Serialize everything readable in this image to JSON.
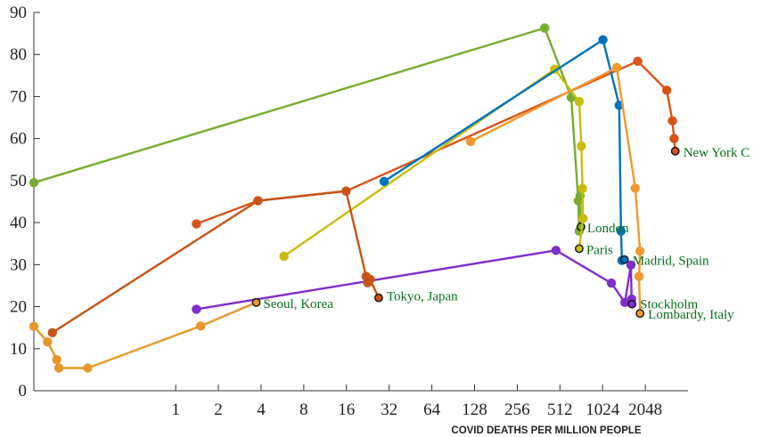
{
  "chart_data": {
    "type": "line",
    "title": "",
    "xlabel": "COVID DEATHS PER MILLION PEOPLE",
    "ylabel": "",
    "x_scale": "log2",
    "xlim": [
      0.1,
      4096
    ],
    "ylim": [
      0,
      90
    ],
    "grid": false,
    "x_ticks": [
      1,
      2,
      4,
      8,
      16,
      32,
      64,
      128,
      256,
      512,
      1024,
      2048
    ],
    "x_tick_labels": [
      "1",
      "2",
      "4",
      "8",
      "16",
      "32",
      "64",
      "128",
      "256",
      "512",
      "1024",
      "2048"
    ],
    "y_ticks": [
      0,
      10,
      20,
      30,
      40,
      50,
      60,
      70,
      80,
      90
    ],
    "y_tick_labels": [
      "0",
      "10",
      "20",
      "30",
      "40",
      "50",
      "60",
      "70",
      "80",
      "90"
    ],
    "series": [
      {
        "name": "New York C",
        "color": "#d95319",
        "points": [
          [
            1.4,
            39.7
          ],
          [
            3.8,
            45.2
          ],
          [
            15.9,
            47.5
          ],
          [
            1810,
            78.4
          ],
          [
            2900,
            71.5
          ],
          [
            3180,
            64.2
          ],
          [
            3270,
            60.0
          ],
          [
            3330,
            57.0
          ]
        ]
      },
      {
        "name": "London",
        "color": "#77ac30",
        "points": [
          [
            0.1,
            49.5
          ],
          [
            400,
            86.3
          ],
          [
            615,
            69.8
          ],
          [
            690,
            45.2
          ],
          [
            700,
            38.0
          ],
          [
            710,
            46.4
          ],
          [
            720,
            39.0
          ]
        ]
      },
      {
        "name": "Paris",
        "color": "#c8bd0e",
        "points": [
          [
            5.8,
            32.0
          ],
          [
            470,
            76.5
          ],
          [
            700,
            68.8
          ],
          [
            725,
            58.2
          ],
          [
            738,
            48.1
          ],
          [
            745,
            41.0
          ],
          [
            700,
            33.8
          ]
        ]
      },
      {
        "name": "Madrid, Spain",
        "color": "#0072bd",
        "points": [
          [
            29.5,
            49.8
          ],
          [
            1030,
            83.5
          ],
          [
            1340,
            67.9
          ],
          [
            1380,
            38.0
          ],
          [
            1400,
            31.0
          ],
          [
            1460,
            31.2
          ]
        ]
      },
      {
        "name": "Lombardy, Italy",
        "color": "#ee9a2e",
        "points": [
          [
            120,
            59.3
          ],
          [
            1290,
            76.9
          ],
          [
            1740,
            48.2
          ],
          [
            1880,
            33.2
          ],
          [
            1850,
            27.2
          ],
          [
            1880,
            18.4
          ]
        ]
      },
      {
        "name": "Stockholm",
        "color": "#7e2fcc",
        "points": [
          [
            1.4,
            19.4
          ],
          [
            480,
            33.4
          ],
          [
            1180,
            25.6
          ],
          [
            1470,
            21.0
          ],
          [
            1620,
            29.9
          ],
          [
            1640,
            21.8
          ],
          [
            1650,
            20.6
          ]
        ]
      },
      {
        "name": "Seoul, Korea",
        "color": "#e6982b",
        "points": [
          [
            0.1,
            15.3
          ],
          [
            0.125,
            11.6
          ],
          [
            0.145,
            7.4
          ],
          [
            0.15,
            5.4
          ],
          [
            0.24,
            5.4
          ],
          [
            1.5,
            15.4
          ],
          [
            3.7,
            21.0
          ]
        ]
      },
      {
        "name": "Tokyo, Japan",
        "color": "#c75417",
        "points": [
          [
            0.135,
            13.8
          ],
          [
            3.8,
            45.2
          ],
          [
            15.9,
            47.5
          ],
          [
            22.0,
            27.2
          ],
          [
            22.6,
            25.7
          ],
          [
            23.5,
            26.5
          ],
          [
            27.0,
            22.1
          ]
        ]
      }
    ],
    "labels": [
      "New York C",
      "London",
      "Paris",
      "Madrid, Spain",
      "Stockholm",
      "Lombardy, Italy",
      "Seoul, Korea",
      "Tokyo, Japan"
    ]
  }
}
